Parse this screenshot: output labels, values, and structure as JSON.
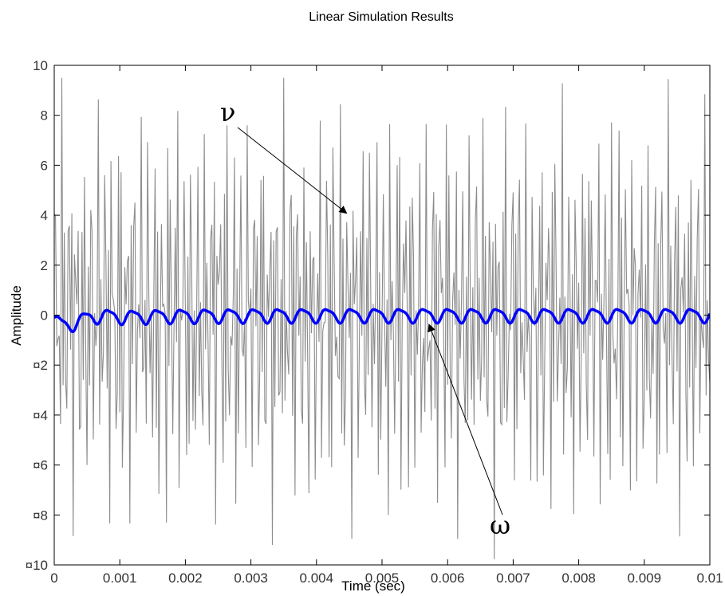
{
  "chart_data": {
    "type": "line",
    "title": "Linear Simulation Results",
    "xlabel": "Time (sec)",
    "ylabel": "Amplitude",
    "xlim": [
      0,
      0.01
    ],
    "ylim": [
      -10,
      10
    ],
    "x_ticks": [
      "0",
      "0.001",
      "0.002",
      "0.003",
      "0.004",
      "0.005",
      "0.006",
      "0.007",
      "0.008",
      "0.009",
      "0.01"
    ],
    "y_ticks": [
      "10",
      "8",
      "6",
      "4",
      "2",
      "0",
      "¤2",
      "¤4",
      "¤6",
      "¤8",
      "¤10"
    ],
    "grid": false,
    "series": [
      {
        "name": "ν",
        "color": "#8c8c8c",
        "description_points": "noisy signal oscillating roughly between -9.8 and 9.5",
        "amplitude_range": [
          -9.8,
          9.5
        ]
      },
      {
        "name": "ω",
        "color": "#0000ff",
        "amplitude_range": [
          -0.9,
          0.4
        ]
      }
    ],
    "annotations": [
      {
        "text": "ν",
        "points_to": {
          "x": 0.00445,
          "y": 4.1
        }
      },
      {
        "text": "ω",
        "points_to": {
          "x": 0.00572,
          "y": -0.4
        }
      }
    ]
  }
}
